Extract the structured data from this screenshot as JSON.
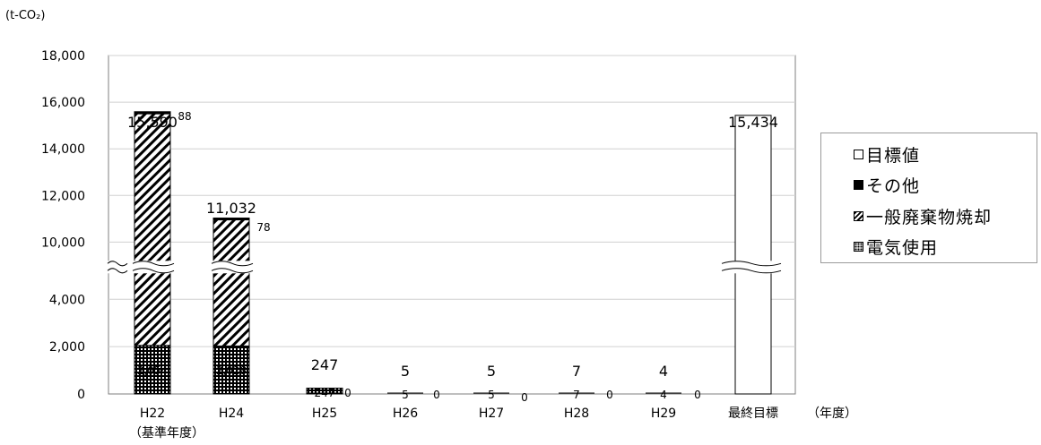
{
  "chart_data": {
    "type": "bar",
    "unit_label": "(t-CO₂)",
    "x_unit_label": "（年度）",
    "categories": [
      "H22",
      "H24",
      "H25",
      "H26",
      "H27",
      "H28",
      "H29",
      "最終目標"
    ],
    "category_sublabels": [
      "（基準年度）",
      "",
      "",
      "",
      "",
      "",
      "",
      ""
    ],
    "y_ticks": [
      "18,000",
      "16,000",
      "14,000",
      "12,000",
      "10,000",
      "4,000",
      "2,000",
      "0"
    ],
    "axis_break": [
      4800,
      9500
    ],
    "totals": [
      "15,590",
      "11,032",
      "247",
      "5",
      "5",
      "7",
      "4",
      "15,434"
    ],
    "series": [
      {
        "name": "電気使用",
        "values": [
          2054,
          2028,
          247,
          5,
          5,
          7,
          4,
          null
        ],
        "labels": [
          "2,054",
          "2,028",
          "247",
          "5",
          "5",
          "7",
          "4",
          ""
        ]
      },
      {
        "name": "一般廃棄物焼却",
        "values": [
          13448,
          8926,
          0,
          0,
          0,
          0,
          0,
          null
        ],
        "labels": [
          "",
          "",
          "",
          "",
          "",
          "",
          "",
          ""
        ]
      },
      {
        "name": "その他",
        "values": [
          88,
          78,
          0,
          0,
          0,
          0,
          0,
          null
        ],
        "labels": [
          "88",
          "78",
          "0",
          "0",
          "0",
          "0",
          "0",
          ""
        ]
      },
      {
        "name": "目標値",
        "values": [
          null,
          null,
          null,
          null,
          null,
          null,
          null,
          15434
        ],
        "labels": [
          "",
          "",
          "",
          "",
          "",
          "",
          "",
          ""
        ]
      }
    ],
    "legend": {
      "position": "right",
      "items": [
        {
          "name": "目標値",
          "swatch": "open"
        },
        {
          "name": "その他",
          "swatch": "solid"
        },
        {
          "name": "一般廃棄物焼却",
          "swatch": "hatch"
        },
        {
          "name": "電気使用",
          "swatch": "dots"
        }
      ]
    },
    "grid": true
  }
}
